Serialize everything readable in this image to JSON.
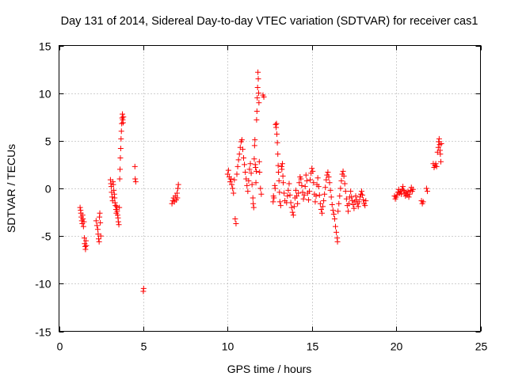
{
  "chart_data": {
    "type": "scatter",
    "title": "Day 131 of 2014, Sidereal Day-to-day VTEC variation (SDTVAR) for receiver cas1",
    "xlabel": "GPS time / hours",
    "ylabel": "SDTVAR / TECUs",
    "xlim": [
      0,
      25
    ],
    "ylim": [
      -15,
      15
    ],
    "xticks": [
      0,
      5,
      10,
      15,
      20,
      25
    ],
    "yticks": [
      -15,
      -10,
      -5,
      0,
      5,
      10,
      15
    ],
    "xtick_labels": [
      "0",
      "5",
      "10",
      "15",
      "20",
      "25"
    ],
    "ytick_labels": [
      "-15",
      "-10",
      "-5",
      "0",
      "5",
      "10",
      "15"
    ],
    "grid": true,
    "marker": "plus",
    "color": "#ff0000",
    "series": [
      {
        "name": "SDTVAR",
        "points": [
          [
            1.25,
            -2.0
          ],
          [
            1.28,
            -2.3
          ],
          [
            1.3,
            -2.6
          ],
          [
            1.32,
            -3.0
          ],
          [
            1.35,
            -3.4
          ],
          [
            1.38,
            -3.7
          ],
          [
            1.4,
            -2.8
          ],
          [
            1.42,
            -3.2
          ],
          [
            1.45,
            -4.0
          ],
          [
            1.48,
            -3.5
          ],
          [
            1.5,
            -5.2
          ],
          [
            1.52,
            -5.8
          ],
          [
            1.55,
            -6.1
          ],
          [
            1.57,
            -6.4
          ],
          [
            1.6,
            -5.5
          ],
          [
            1.62,
            -6.0
          ],
          [
            2.2,
            -3.4
          ],
          [
            2.25,
            -3.9
          ],
          [
            2.3,
            -4.3
          ],
          [
            2.32,
            -4.8
          ],
          [
            2.35,
            -5.3
          ],
          [
            2.38,
            -5.6
          ],
          [
            2.4,
            -3.0
          ],
          [
            2.42,
            -2.6
          ],
          [
            2.45,
            -3.6
          ],
          [
            2.48,
            -5.0
          ],
          [
            3.05,
            0.9
          ],
          [
            3.08,
            0.5
          ],
          [
            3.1,
            0.2
          ],
          [
            3.12,
            -0.4
          ],
          [
            3.15,
            -0.9
          ],
          [
            3.18,
            -1.3
          ],
          [
            3.2,
            0.7
          ],
          [
            3.22,
            0.4
          ],
          [
            3.25,
            -0.2
          ],
          [
            3.28,
            -0.6
          ],
          [
            3.3,
            -1.0
          ],
          [
            3.32,
            -1.5
          ],
          [
            3.35,
            -1.8
          ],
          [
            3.38,
            -2.2
          ],
          [
            3.4,
            -2.6
          ],
          [
            3.42,
            -1.9
          ],
          [
            3.45,
            -2.4
          ],
          [
            3.48,
            -2.8
          ],
          [
            3.5,
            -3.1
          ],
          [
            3.52,
            -3.5
          ],
          [
            3.55,
            -3.8
          ],
          [
            3.58,
            -2.0
          ],
          [
            3.6,
            1.0
          ],
          [
            3.62,
            2.0
          ],
          [
            3.64,
            3.2
          ],
          [
            3.66,
            4.2
          ],
          [
            3.68,
            5.2
          ],
          [
            3.7,
            6.0
          ],
          [
            3.72,
            6.8
          ],
          [
            3.74,
            7.4
          ],
          [
            3.76,
            7.8
          ],
          [
            3.78,
            7.2
          ],
          [
            3.8,
            6.9
          ],
          [
            3.82,
            7.5
          ],
          [
            4.5,
            2.3
          ],
          [
            4.52,
            1.0
          ],
          [
            4.55,
            0.7
          ],
          [
            5.0,
            -10.8
          ],
          [
            5.02,
            -10.5
          ],
          [
            6.7,
            -1.6
          ],
          [
            6.75,
            -1.3
          ],
          [
            6.8,
            -1.0
          ],
          [
            6.85,
            -1.4
          ],
          [
            6.9,
            -0.8
          ],
          [
            6.95,
            -1.2
          ],
          [
            7.0,
            -0.5
          ],
          [
            7.05,
            0.0
          ],
          [
            7.08,
            0.4
          ],
          [
            7.02,
            -1.0
          ],
          [
            10.0,
            1.5
          ],
          [
            10.05,
            1.9
          ],
          [
            10.1,
            1.2
          ],
          [
            10.15,
            0.7
          ],
          [
            10.2,
            1.0
          ],
          [
            10.25,
            0.4
          ],
          [
            10.3,
            0.0
          ],
          [
            10.35,
            -0.5
          ],
          [
            10.4,
            0.9
          ],
          [
            10.45,
            -3.2
          ],
          [
            10.5,
            -3.7
          ],
          [
            10.55,
            1.5
          ],
          [
            10.6,
            2.3
          ],
          [
            10.65,
            3.0
          ],
          [
            10.7,
            3.6
          ],
          [
            10.75,
            4.3
          ],
          [
            10.8,
            4.9
          ],
          [
            10.85,
            5.1
          ],
          [
            10.9,
            4.1
          ],
          [
            10.95,
            3.2
          ],
          [
            11.0,
            2.5
          ],
          [
            11.05,
            1.7
          ],
          [
            11.1,
            1.0
          ],
          [
            11.15,
            0.3
          ],
          [
            11.2,
            -0.3
          ],
          [
            11.25,
            0.8
          ],
          [
            11.3,
            2.0
          ],
          [
            11.35,
            2.6
          ],
          [
            11.4,
            1.6
          ],
          [
            11.45,
            0.4
          ],
          [
            11.5,
            -1.0
          ],
          [
            11.52,
            -1.6
          ],
          [
            11.55,
            -2.0
          ],
          [
            11.58,
            3.1
          ],
          [
            11.6,
            4.5
          ],
          [
            11.62,
            5.1
          ],
          [
            11.64,
            2.5
          ],
          [
            11.66,
            2.2
          ],
          [
            11.68,
            0.6
          ],
          [
            11.7,
            1.8
          ],
          [
            11.72,
            7.2
          ],
          [
            11.74,
            8.1
          ],
          [
            11.76,
            9.5
          ],
          [
            11.78,
            10.6
          ],
          [
            11.8,
            12.2
          ],
          [
            11.82,
            11.5
          ],
          [
            11.84,
            10.0
          ],
          [
            11.86,
            9.0
          ],
          [
            11.88,
            2.8
          ],
          [
            11.9,
            1.7
          ],
          [
            11.95,
            0.0
          ],
          [
            12.0,
            -0.6
          ],
          [
            12.1,
            9.8
          ],
          [
            12.15,
            9.6
          ],
          [
            12.7,
            -1.4
          ],
          [
            12.72,
            -0.8
          ],
          [
            12.75,
            -1.0
          ],
          [
            12.8,
            0.3
          ],
          [
            12.82,
            0.0
          ],
          [
            12.85,
            6.7
          ],
          [
            12.88,
            6.4
          ],
          [
            12.9,
            6.8
          ],
          [
            12.92,
            5.7
          ],
          [
            12.95,
            4.8
          ],
          [
            12.98,
            3.6
          ],
          [
            13.0,
            2.4
          ],
          [
            13.02,
            1.7
          ],
          [
            13.05,
            0.8
          ],
          [
            13.08,
            -0.4
          ],
          [
            13.1,
            -1.4
          ],
          [
            13.15,
            -1.8
          ],
          [
            13.2,
            2.3
          ],
          [
            13.22,
            2.0
          ],
          [
            13.25,
            2.6
          ],
          [
            13.28,
            1.3
          ],
          [
            13.3,
            0.6
          ],
          [
            13.35,
            -0.5
          ],
          [
            13.4,
            -1.3
          ],
          [
            13.5,
            -1.5
          ],
          [
            13.55,
            -0.8
          ],
          [
            13.6,
            -0.2
          ],
          [
            13.65,
            0.5
          ],
          [
            13.7,
            -0.7
          ],
          [
            13.75,
            -1.5
          ],
          [
            13.8,
            -2.0
          ],
          [
            13.85,
            -2.5
          ],
          [
            13.9,
            -2.8
          ],
          [
            13.95,
            -1.9
          ],
          [
            14.0,
            -1.0
          ],
          [
            14.05,
            -0.2
          ],
          [
            14.1,
            -0.8
          ],
          [
            14.15,
            -1.6
          ],
          [
            14.2,
            -0.5
          ],
          [
            14.25,
            0.6
          ],
          [
            14.3,
            1.2
          ],
          [
            14.35,
            1.0
          ],
          [
            14.4,
            0.3
          ],
          [
            14.45,
            -0.4
          ],
          [
            14.5,
            -1.1
          ],
          [
            14.55,
            -0.7
          ],
          [
            14.6,
            0.2
          ],
          [
            14.65,
            1.4
          ],
          [
            14.7,
            0.8
          ],
          [
            14.75,
            -0.5
          ],
          [
            14.8,
            -1.2
          ],
          [
            14.85,
            -0.3
          ],
          [
            14.9,
            0.9
          ],
          [
            14.95,
            1.6
          ],
          [
            15.0,
            2.1
          ],
          [
            15.05,
            1.8
          ],
          [
            15.1,
            0.6
          ],
          [
            15.15,
            -0.6
          ],
          [
            15.2,
            -1.4
          ],
          [
            15.25,
            -0.8
          ],
          [
            15.3,
            0.4
          ],
          [
            15.35,
            1.1
          ],
          [
            15.4,
            0.2
          ],
          [
            15.45,
            -0.7
          ],
          [
            15.5,
            -1.6
          ],
          [
            15.55,
            -2.2
          ],
          [
            15.6,
            -2.6
          ],
          [
            15.65,
            -1.9
          ],
          [
            15.7,
            -1.3
          ],
          [
            15.75,
            -0.6
          ],
          [
            15.8,
            0.1
          ],
          [
            15.85,
            0.9
          ],
          [
            15.9,
            1.4
          ],
          [
            15.95,
            1.7
          ],
          [
            16.0,
            1.2
          ],
          [
            16.05,
            0.6
          ],
          [
            16.1,
            -0.2
          ],
          [
            16.15,
            -0.9
          ],
          [
            16.2,
            -1.7
          ],
          [
            16.25,
            -2.3
          ],
          [
            16.3,
            -2.7
          ],
          [
            16.35,
            -3.2
          ],
          [
            16.4,
            -4.0
          ],
          [
            16.45,
            -4.6
          ],
          [
            16.5,
            -5.2
          ],
          [
            16.52,
            -5.6
          ],
          [
            16.55,
            -2.4
          ],
          [
            16.6,
            -1.6
          ],
          [
            16.65,
            -0.8
          ],
          [
            16.7,
            0.0
          ],
          [
            16.75,
            0.8
          ],
          [
            16.8,
            1.5
          ],
          [
            16.85,
            1.8
          ],
          [
            16.9,
            1.3
          ],
          [
            16.95,
            0.5
          ],
          [
            17.0,
            -0.3
          ],
          [
            17.05,
            -1.1
          ],
          [
            17.1,
            -1.8
          ],
          [
            17.15,
            -2.4
          ],
          [
            17.2,
            -1.6
          ],
          [
            17.25,
            -0.9
          ],
          [
            17.3,
            -0.3
          ],
          [
            17.35,
            -0.9
          ],
          [
            17.4,
            -1.3
          ],
          [
            17.45,
            -1.7
          ],
          [
            17.5,
            -2.1
          ],
          [
            17.55,
            -1.4
          ],
          [
            17.6,
            -0.8
          ],
          [
            17.65,
            -1.2
          ],
          [
            17.7,
            -1.6
          ],
          [
            17.75,
            -1.9
          ],
          [
            17.8,
            -1.4
          ],
          [
            17.85,
            -0.9
          ],
          [
            17.9,
            -0.6
          ],
          [
            17.95,
            -0.3
          ],
          [
            18.0,
            -0.7
          ],
          [
            18.05,
            -1.2
          ],
          [
            18.1,
            -1.6
          ],
          [
            18.15,
            -1.8
          ],
          [
            18.2,
            -1.3
          ],
          [
            19.9,
            -0.8
          ],
          [
            19.95,
            -1.1
          ],
          [
            20.0,
            -0.9
          ],
          [
            20.05,
            -0.7
          ],
          [
            20.1,
            -0.4
          ],
          [
            20.15,
            -0.1
          ],
          [
            20.2,
            -0.5
          ],
          [
            20.25,
            -0.3
          ],
          [
            20.3,
            -0.6
          ],
          [
            20.35,
            -0.1
          ],
          [
            20.4,
            0.2
          ],
          [
            20.45,
            -0.2
          ],
          [
            20.5,
            -0.5
          ],
          [
            20.55,
            -0.8
          ],
          [
            20.6,
            -0.4
          ],
          [
            20.65,
            -0.7
          ],
          [
            20.7,
            -0.3
          ],
          [
            20.75,
            -0.9
          ],
          [
            20.8,
            -0.6
          ],
          [
            20.85,
            -0.2
          ],
          [
            20.9,
            0.1
          ],
          [
            20.95,
            -0.3
          ],
          [
            21.0,
            -0.1
          ],
          [
            21.5,
            -1.3
          ],
          [
            21.55,
            -1.6
          ],
          [
            21.6,
            -1.4
          ],
          [
            21.8,
            0.0
          ],
          [
            21.85,
            -0.3
          ],
          [
            22.2,
            2.6
          ],
          [
            22.25,
            2.2
          ],
          [
            22.3,
            2.4
          ],
          [
            22.35,
            2.6
          ],
          [
            22.4,
            2.3
          ],
          [
            22.45,
            3.8
          ],
          [
            22.5,
            4.3
          ],
          [
            22.52,
            4.9
          ],
          [
            22.55,
            5.2
          ],
          [
            22.58,
            4.6
          ],
          [
            22.6,
            4.0
          ],
          [
            22.62,
            3.6
          ],
          [
            22.65,
            2.8
          ],
          [
            22.68,
            4.7
          ]
        ]
      }
    ]
  }
}
